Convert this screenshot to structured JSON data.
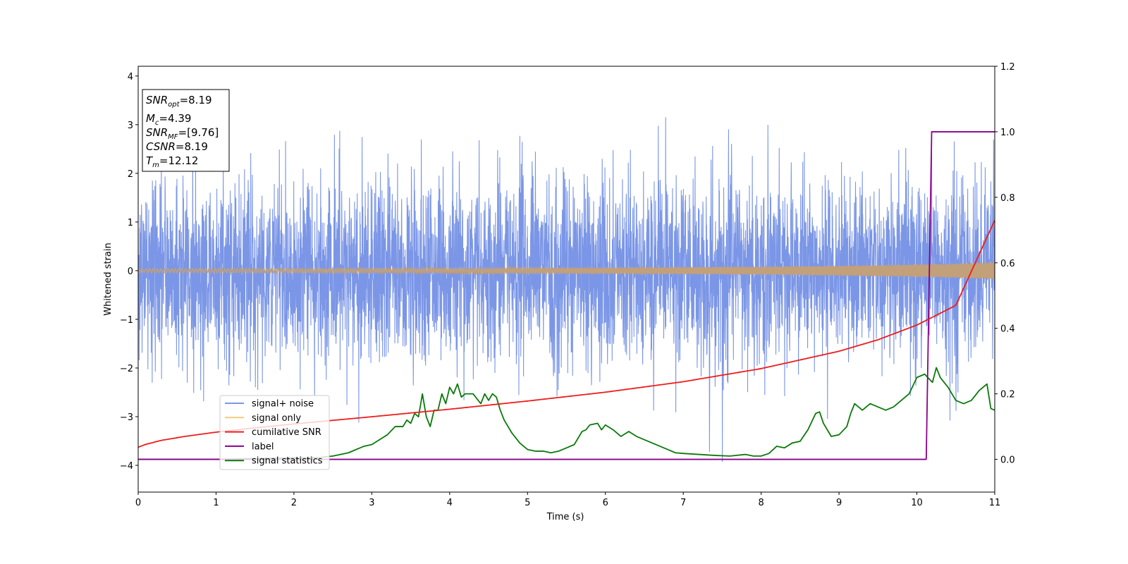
{
  "chart_data": {
    "type": "line",
    "xlabel": "Time (s)",
    "ylabel": "Whitened strain",
    "xlim": [
      0,
      11
    ],
    "ylim": [
      -4.55,
      4.2
    ],
    "y2lim": [
      -0.1,
      1.2
    ],
    "xticks": [
      "0",
      "1",
      "2",
      "3",
      "4",
      "5",
      "6",
      "7",
      "8",
      "9",
      "10",
      "11"
    ],
    "yticks": [
      "−4",
      "−3",
      "−2",
      "−1",
      "0",
      "1",
      "2",
      "3",
      "4"
    ],
    "y2ticks": [
      "0.0",
      "0.2",
      "0.4",
      "0.6",
      "0.8",
      "1.0",
      "1.2"
    ],
    "grid": false,
    "legend_position": "lower-left",
    "legend": [
      "signal+ noise",
      "signal only",
      "cumilative SNR",
      "label",
      "signal statistics"
    ],
    "info_box": {
      "lines": [
        {
          "name": "SNR",
          "sub": "opt",
          "value": "=8.19"
        },
        {
          "name": "M",
          "sub": "c",
          "value": "=4.39"
        },
        {
          "name": "SNR",
          "sub": "MF",
          "value": "=[9.76]"
        },
        {
          "name": "CSNR",
          "sub": "",
          "value": "=8.19"
        },
        {
          "name": "T",
          "sub": "m",
          "value": "=12.12"
        }
      ]
    },
    "series": [
      {
        "name": "signal+ noise",
        "axis": "left",
        "color": "#7b96e6",
        "note": "dense whitened noise, roughly -2.7 to 2.7 with spikes to ±3.5",
        "x": [
          0,
          11
        ]
      },
      {
        "name": "signal only",
        "axis": "left",
        "color": "#f5c97a",
        "amplitude_x": [
          0,
          2,
          4,
          6,
          8,
          9,
          10,
          10.5,
          11
        ],
        "amplitude": [
          0.04,
          0.045,
          0.05,
          0.06,
          0.08,
          0.1,
          0.13,
          0.15,
          0.18
        ]
      },
      {
        "name": "cumilative SNR",
        "axis": "right",
        "color": "#ee1c1c",
        "x": [
          0,
          0.1,
          0.3,
          0.6,
          1,
          1.5,
          2,
          3,
          4,
          5,
          6,
          7,
          8,
          9,
          9.5,
          10,
          10.5,
          11
        ],
        "y": [
          0.037,
          0.046,
          0.058,
          0.07,
          0.083,
          0.096,
          0.108,
          0.13,
          0.153,
          0.178,
          0.205,
          0.237,
          0.277,
          0.33,
          0.365,
          0.41,
          0.47,
          0.73
        ]
      },
      {
        "name": "label",
        "axis": "right",
        "color": "#8b008b",
        "x": [
          0,
          10.12,
          10.19,
          11
        ],
        "y": [
          0.0,
          0.0,
          1.0,
          1.0
        ]
      },
      {
        "name": "signal statistics",
        "axis": "right",
        "color": "#0a7a0a",
        "x": [
          0,
          1,
          2,
          2.3,
          2.5,
          2.7,
          2.9,
          3.0,
          3.1,
          3.2,
          3.3,
          3.4,
          3.45,
          3.5,
          3.55,
          3.6,
          3.65,
          3.7,
          3.75,
          3.8,
          3.85,
          3.9,
          3.95,
          4.0,
          4.05,
          4.1,
          4.15,
          4.2,
          4.3,
          4.4,
          4.45,
          4.5,
          4.55,
          4.6,
          4.65,
          4.7,
          4.8,
          4.9,
          5.0,
          5.1,
          5.2,
          5.3,
          5.4,
          5.5,
          5.6,
          5.7,
          5.75,
          5.8,
          5.9,
          5.95,
          6.0,
          6.1,
          6.2,
          6.3,
          6.4,
          6.5,
          6.6,
          6.7,
          6.8,
          6.9,
          7.0,
          7.2,
          7.4,
          7.6,
          7.8,
          7.9,
          8.0,
          8.1,
          8.2,
          8.3,
          8.4,
          8.5,
          8.6,
          8.7,
          8.75,
          8.8,
          8.9,
          9.0,
          9.1,
          9.15,
          9.2,
          9.3,
          9.4,
          9.5,
          9.6,
          9.7,
          9.8,
          9.9,
          10.0,
          10.1,
          10.2,
          10.25,
          10.3,
          10.4,
          10.5,
          10.6,
          10.7,
          10.8,
          10.9,
          10.95,
          11.0
        ],
        "y": [
          0.0,
          0.0,
          0.005,
          0.005,
          0.01,
          0.02,
          0.04,
          0.045,
          0.06,
          0.075,
          0.1,
          0.1,
          0.12,
          0.11,
          0.14,
          0.13,
          0.2,
          0.13,
          0.1,
          0.15,
          0.15,
          0.2,
          0.17,
          0.22,
          0.2,
          0.23,
          0.19,
          0.2,
          0.2,
          0.17,
          0.2,
          0.18,
          0.2,
          0.19,
          0.15,
          0.12,
          0.08,
          0.05,
          0.03,
          0.025,
          0.025,
          0.02,
          0.025,
          0.035,
          0.045,
          0.085,
          0.09,
          0.105,
          0.11,
          0.09,
          0.105,
          0.09,
          0.07,
          0.085,
          0.07,
          0.06,
          0.05,
          0.04,
          0.03,
          0.02,
          0.018,
          0.015,
          0.012,
          0.01,
          0.015,
          0.01,
          0.01,
          0.018,
          0.04,
          0.035,
          0.05,
          0.055,
          0.09,
          0.14,
          0.145,
          0.11,
          0.07,
          0.075,
          0.1,
          0.14,
          0.17,
          0.15,
          0.17,
          0.16,
          0.15,
          0.16,
          0.18,
          0.2,
          0.25,
          0.26,
          0.235,
          0.28,
          0.25,
          0.22,
          0.18,
          0.17,
          0.18,
          0.21,
          0.23,
          0.155,
          0.15
        ]
      }
    ]
  }
}
